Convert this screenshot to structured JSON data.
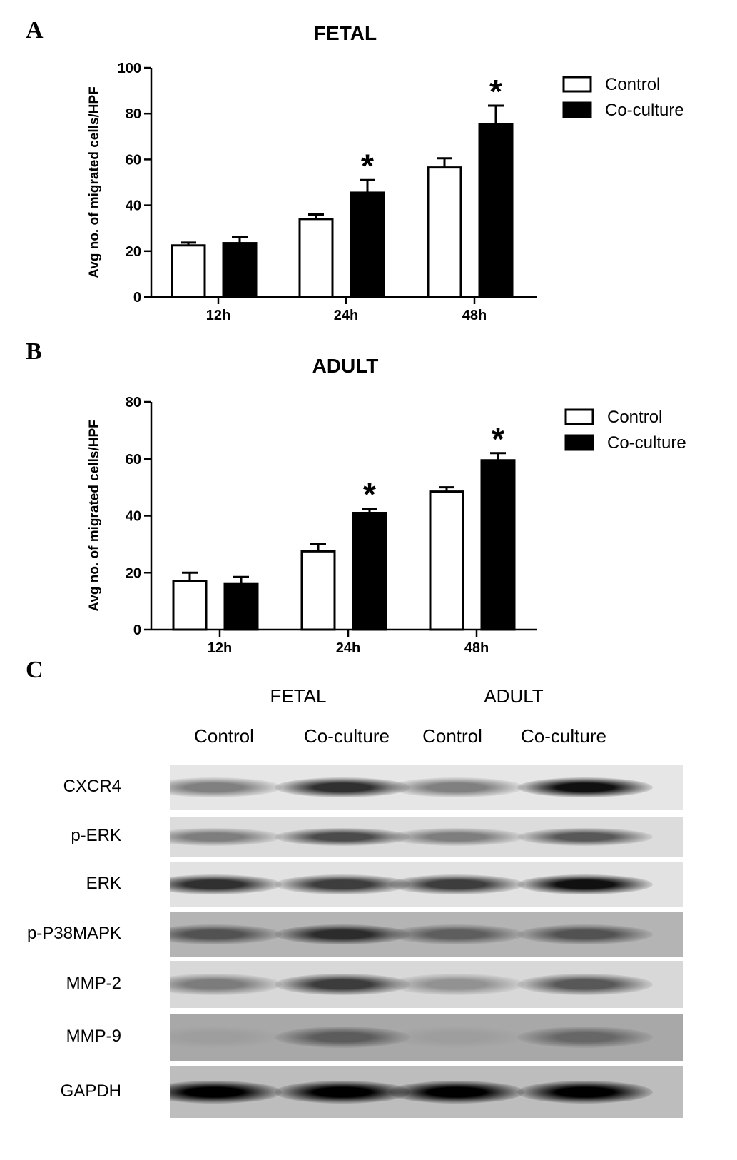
{
  "panels": {
    "a_letter": "A",
    "b_letter": "B",
    "c_letter": "C"
  },
  "chart_data": [
    {
      "type": "bar",
      "title": "FETAL",
      "ylabel": "Avg no. of migrated cells/HPF",
      "xlabel": "",
      "categories": [
        "12h",
        "24h",
        "48h"
      ],
      "ylim": [
        0,
        100
      ],
      "yticks": [
        "0",
        "20",
        "40",
        "60",
        "80",
        "100"
      ],
      "legend_position": "top-right",
      "series": [
        {
          "name": "Control",
          "color": "#ffffff",
          "values": [
            22.5,
            34,
            56.5
          ],
          "errors": [
            1.2,
            2.0,
            4.0
          ]
        },
        {
          "name": "Co-culture",
          "color": "#000000",
          "values": [
            23.5,
            45.5,
            75.5
          ],
          "errors": [
            2.5,
            5.5,
            8.0
          ]
        }
      ],
      "significance": [
        {
          "category": "24h",
          "series": "Co-culture",
          "marker": "*"
        },
        {
          "category": "48h",
          "series": "Co-culture",
          "marker": "*"
        }
      ]
    },
    {
      "type": "bar",
      "title": "ADULT",
      "ylabel": "Avg no. of migrated cells/HPF",
      "xlabel": "",
      "categories": [
        "12h",
        "24h",
        "48h"
      ],
      "ylim": [
        0,
        80
      ],
      "yticks": [
        "0",
        "20",
        "40",
        "60",
        "80"
      ],
      "legend_position": "top-right",
      "series": [
        {
          "name": "Control",
          "color": "#ffffff",
          "values": [
            17,
            27.5,
            48.5
          ],
          "errors": [
            3.0,
            2.5,
            1.5
          ]
        },
        {
          "name": "Co-culture",
          "color": "#000000",
          "values": [
            16,
            41,
            59.5
          ],
          "errors": [
            2.5,
            1.5,
            2.5
          ]
        }
      ],
      "significance": [
        {
          "category": "24h",
          "series": "Co-culture",
          "marker": "*"
        },
        {
          "category": "48h",
          "series": "Co-culture",
          "marker": "*"
        }
      ]
    }
  ],
  "western_blot": {
    "groups": [
      "FETAL",
      "ADULT"
    ],
    "lanes": [
      "Control",
      "Co-culture",
      "Control",
      "Co-culture"
    ],
    "bands": [
      {
        "label": "CXCR4",
        "intensities": [
          0.55,
          0.85,
          0.55,
          0.95
        ],
        "background": "#e6e6e6"
      },
      {
        "label": "p-ERK",
        "intensities": [
          0.55,
          0.75,
          0.55,
          0.7
        ],
        "background": "#dcdcdc"
      },
      {
        "label": "ERK",
        "intensities": [
          0.85,
          0.8,
          0.8,
          0.95
        ],
        "background": "#e2e2e2"
      },
      {
        "label": "p-P38MAPK",
        "intensities": [
          0.7,
          0.85,
          0.65,
          0.7
        ],
        "background": "#b4b4b4"
      },
      {
        "label": "MMP-2",
        "intensities": [
          0.55,
          0.8,
          0.45,
          0.7
        ],
        "background": "#d8d8d8"
      },
      {
        "label": "MMP-9",
        "intensities": [
          0.3,
          0.65,
          0.3,
          0.6
        ],
        "background": "#a8a8a8"
      },
      {
        "label": "GAPDH",
        "intensities": [
          1.0,
          1.0,
          1.0,
          1.0
        ],
        "background": "#bdbdbd"
      }
    ]
  }
}
